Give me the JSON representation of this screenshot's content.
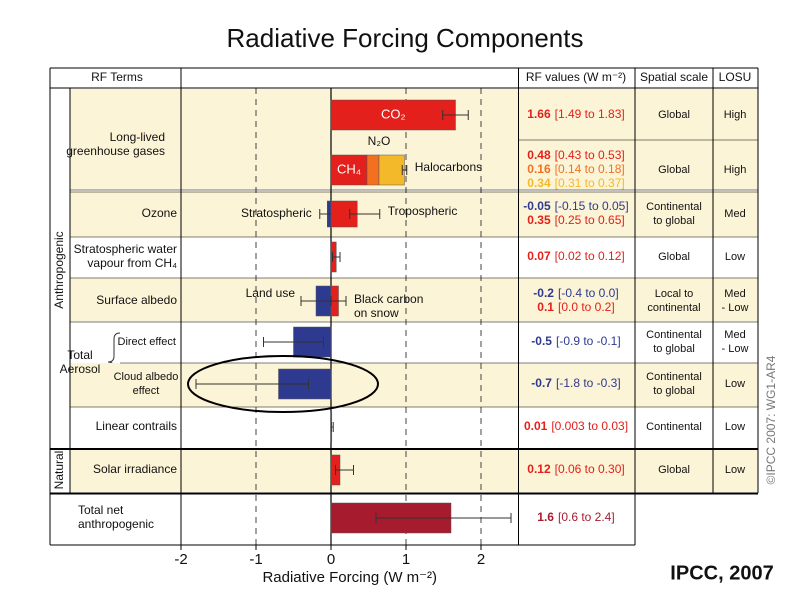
{
  "chart_data": {
    "type": "bar",
    "title": "Radiative Forcing Components",
    "xlabel": "Radiative Forcing (W m⁻²)",
    "xlim": [
      -2,
      2.5
    ],
    "xticks": [
      -2,
      -1,
      0,
      1,
      2
    ],
    "grid": true,
    "headers": [
      "RF Terms",
      "RF values (W m⁻²)",
      "Spatial scale",
      "LOSU"
    ],
    "groups": [
      "Anthropogenic",
      "Natural"
    ],
    "rows": [
      {
        "label": [
          "Long-lived",
          "greenhouse gases"
        ],
        "scale": [
          "Global"
        ],
        "losu": [
          "High"
        ],
        "terms": [
          {
            "name": [
              "CO₂"
            ],
            "value": 1.66,
            "low": 1.49,
            "high": 1.83,
            "range": "[1.49 to 1.83]",
            "color": "#e3201b"
          }
        ]
      },
      {
        "scale": [
          "Global"
        ],
        "losu": [
          "High"
        ],
        "stacked": true,
        "terms": [
          {
            "name": [
              "CH₄"
            ],
            "value": 0.48,
            "range": "[0.43 to 0.53]",
            "color": "#e3201b"
          },
          {
            "name": [
              "N₂O"
            ],
            "value": 0.16,
            "range": "[0.14 to 0.18]",
            "color": "#f37021"
          },
          {
            "name": [
              "Halocarbons"
            ],
            "value": 0.34,
            "low": 0.31,
            "high": 0.37,
            "range": "[0.31 to 0.37]",
            "color": "#f4b92b"
          }
        ]
      },
      {
        "label": [
          "Ozone"
        ],
        "scale": [
          "Continental",
          "to global"
        ],
        "losu": [
          "Med"
        ],
        "terms": [
          {
            "name": [
              "Stratospheric"
            ],
            "value": -0.05,
            "low": -0.15,
            "high": 0.05,
            "range": "[-0.15 to 0.05]",
            "color": "#2e3a8f"
          },
          {
            "name": [
              "Tropospheric"
            ],
            "value": 0.35,
            "low": 0.25,
            "high": 0.65,
            "range": "[0.25 to 0.65]",
            "color": "#e3201b"
          }
        ]
      },
      {
        "label": [
          "Stratospheric water",
          "vapour from CH₄"
        ],
        "scale": [
          "Global"
        ],
        "losu": [
          "Low"
        ],
        "terms": [
          {
            "value": 0.07,
            "low": 0.02,
            "high": 0.12,
            "range": "[0.02 to 0.12]",
            "color": "#e3201b"
          }
        ]
      },
      {
        "label": [
          "Surface albedo"
        ],
        "scale": [
          "Local to",
          "continental"
        ],
        "losu": [
          "Med",
          "- Low"
        ],
        "terms": [
          {
            "name": [
              "Land use"
            ],
            "value": -0.2,
            "low": -0.4,
            "high": 0.0,
            "range": "[-0.4 to 0.0]",
            "color": "#2e3a8f"
          },
          {
            "name": [
              "Black carbon",
              "on snow"
            ],
            "value": 0.1,
            "low": 0.0,
            "high": 0.2,
            "range": "[0.0 to 0.2]",
            "color": "#e3201b"
          }
        ]
      },
      {
        "label": [
          "Direct effect"
        ],
        "group": [
          "Total",
          "Aerosol"
        ],
        "scale": [
          "Continental",
          "to global"
        ],
        "losu": [
          "Med",
          "- Low"
        ],
        "terms": [
          {
            "value": -0.5,
            "low": -0.9,
            "high": -0.1,
            "range": "[-0.9 to -0.1]",
            "color": "#2e3a8f"
          }
        ]
      },
      {
        "label": [
          "Cloud albedo",
          "effect"
        ],
        "scale": [
          "Continental",
          "to global"
        ],
        "losu": [
          "Low"
        ],
        "terms": [
          {
            "value": -0.7,
            "low": -1.8,
            "high": -0.3,
            "range": "[-1.8 to -0.3]",
            "color": "#2e3a8f"
          }
        ]
      },
      {
        "label": [
          "Linear contrails"
        ],
        "scale": [
          "Continental"
        ],
        "losu": [
          "Low"
        ],
        "terms": [
          {
            "value": 0.01,
            "low": 0.003,
            "high": 0.03,
            "range": "[0.003 to 0.03]",
            "color": "#e3201b"
          }
        ]
      },
      {
        "label": [
          "Solar irradiance"
        ],
        "scale": [
          "Global"
        ],
        "losu": [
          "Low"
        ],
        "terms": [
          {
            "value": 0.12,
            "low": 0.06,
            "high": 0.3,
            "range": "[0.06 to 0.30]",
            "color": "#e3201b"
          }
        ]
      },
      {
        "label": [
          "Total net",
          "anthropogenic"
        ],
        "terms": [
          {
            "value": 1.6,
            "low": 0.6,
            "high": 2.4,
            "range": "[0.6 to 2.4]",
            "color": "#a61c2e"
          }
        ]
      }
    ],
    "credit": "©IPCC 2007: WG1-AR4",
    "source": "IPCC, 2007"
  }
}
